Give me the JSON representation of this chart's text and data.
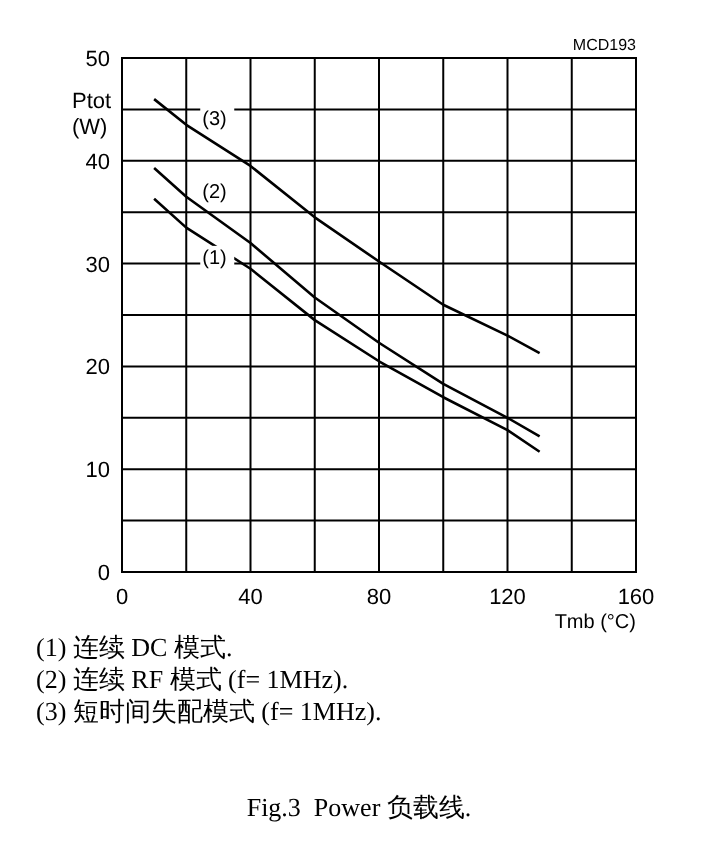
{
  "chart_data": {
    "type": "line",
    "title": "Fig.3  Power 负载线.",
    "xlabel": "Tmb (°C)",
    "ylabel": "Ptot\n(W)",
    "annotations": [
      "MCD193",
      "(1) 连续 DC 模式.",
      "(2) 连续 RF 模式 (f= 1MHz).",
      "(3) 短时间失配模式 (f= 1MHz)."
    ],
    "x": [
      10,
      20,
      40,
      60,
      80,
      100,
      120,
      130
    ],
    "series": [
      {
        "name": "(1)",
        "color": "#000000",
        "values": [
          36.3,
          33.5,
          29.5,
          24.5,
          20.5,
          17,
          13.8,
          11.7
        ]
      },
      {
        "name": "(2)",
        "color": "#000000",
        "values": [
          39.3,
          36.5,
          32,
          26.7,
          22.3,
          18.3,
          15,
          13.2
        ]
      },
      {
        "name": "(3)",
        "color": "#000000",
        "values": [
          46,
          43.5,
          39.5,
          34.5,
          30.2,
          26,
          23,
          21.3
        ]
      }
    ],
    "xlim": [
      0,
      160
    ],
    "ylim": [
      0,
      50
    ],
    "xticks": [
      0,
      {
        "value": 20,
        "label": null
      },
      40,
      {
        "value": 60,
        "label": null
      },
      80,
      {
        "value": 100,
        "label": null
      },
      120,
      {
        "value": 140,
        "label": null
      },
      160
    ],
    "yticks": [
      0,
      {
        "value": 5,
        "label": null
      },
      10,
      {
        "value": 15,
        "label": null
      },
      20,
      {
        "value": 25,
        "label": null
      },
      30,
      {
        "value": 35,
        "label": null
      },
      40,
      {
        "value": 45,
        "label": null
      },
      50
    ],
    "grid": true,
    "line_style": "solid",
    "marker": "none"
  }
}
